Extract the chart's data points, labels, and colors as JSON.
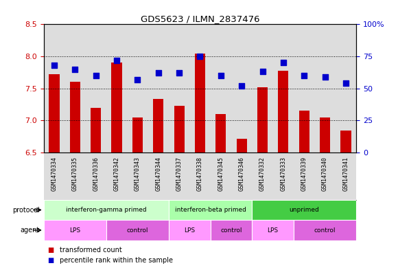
{
  "title": "GDS5623 / ILMN_2837476",
  "samples": [
    "GSM1470334",
    "GSM1470335",
    "GSM1470336",
    "GSM1470342",
    "GSM1470343",
    "GSM1470344",
    "GSM1470337",
    "GSM1470338",
    "GSM1470345",
    "GSM1470346",
    "GSM1470332",
    "GSM1470333",
    "GSM1470339",
    "GSM1470340",
    "GSM1470341"
  ],
  "transformed_count": [
    7.72,
    7.6,
    7.2,
    7.9,
    7.05,
    7.34,
    7.23,
    8.04,
    7.1,
    6.72,
    7.52,
    7.78,
    7.15,
    7.05,
    6.84
  ],
  "percentile_rank": [
    68,
    65,
    60,
    72,
    57,
    62,
    62,
    75,
    60,
    52,
    63,
    70,
    60,
    59,
    54
  ],
  "ylim_left": [
    6.5,
    8.5
  ],
  "ylim_right": [
    0,
    100
  ],
  "yticks_left": [
    6.5,
    7.0,
    7.5,
    8.0,
    8.5
  ],
  "yticks_right": [
    0,
    25,
    50,
    75,
    100
  ],
  "ytick_labels_right": [
    "0",
    "25",
    "50",
    "75",
    "100%"
  ],
  "bar_color": "#cc0000",
  "dot_color": "#0000cc",
  "bar_bottom": 6.5,
  "protocol_groups": [
    {
      "label": "interferon-gamma primed",
      "start": 0,
      "end": 6,
      "color": "#ccffcc"
    },
    {
      "label": "interferon-beta primed",
      "start": 6,
      "end": 10,
      "color": "#aaffaa"
    },
    {
      "label": "unprimed",
      "start": 10,
      "end": 15,
      "color": "#44cc44"
    }
  ],
  "agent_groups": [
    {
      "label": "LPS",
      "start": 0,
      "end": 3,
      "color": "#ff99ff"
    },
    {
      "label": "control",
      "start": 3,
      "end": 6,
      "color": "#dd66dd"
    },
    {
      "label": "LPS",
      "start": 6,
      "end": 8,
      "color": "#ff99ff"
    },
    {
      "label": "control",
      "start": 8,
      "end": 10,
      "color": "#dd66dd"
    },
    {
      "label": "LPS",
      "start": 10,
      "end": 12,
      "color": "#ff99ff"
    },
    {
      "label": "control",
      "start": 12,
      "end": 15,
      "color": "#dd66dd"
    }
  ],
  "tick_label_color_left": "#cc0000",
  "tick_label_color_right": "#0000cc",
  "background_sample": "#dddddd",
  "bar_width": 0.5,
  "dot_size": 30,
  "legend_red": "transformed count",
  "legend_blue": "percentile rank within the sample"
}
